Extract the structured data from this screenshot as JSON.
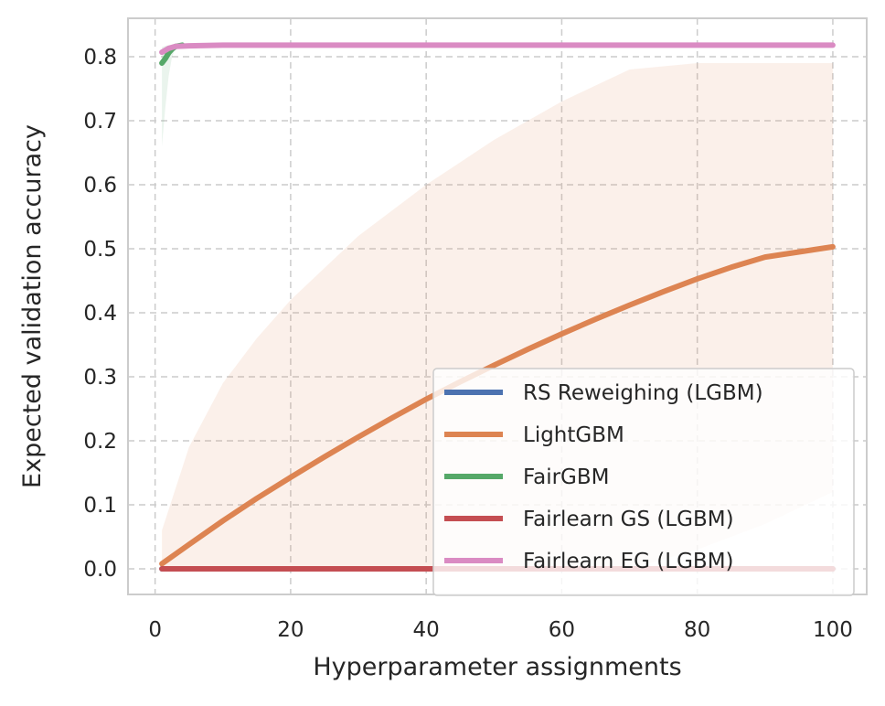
{
  "chart_data": {
    "type": "line",
    "title": "",
    "xlabel": "Hyperparameter assignments",
    "ylabel": "Expected validation accuracy",
    "xlim": [
      -4,
      105
    ],
    "ylim": [
      -0.04,
      0.86
    ],
    "xticks": [
      0,
      20,
      40,
      60,
      80,
      100
    ],
    "yticks": [
      0.0,
      0.1,
      0.2,
      0.3,
      0.4,
      0.5,
      0.6,
      0.7,
      0.8
    ],
    "xtick_labels": [
      "0",
      "20",
      "40",
      "60",
      "80",
      "100"
    ],
    "ytick_labels": [
      "0.0",
      "0.1",
      "0.2",
      "0.3",
      "0.4",
      "0.5",
      "0.6",
      "0.7",
      "0.8"
    ],
    "grid": true,
    "legend_position": "lower-right",
    "series": [
      {
        "name": "RS Reweighing (LGBM)",
        "color": "#4c72b0",
        "x": [
          1,
          100
        ],
        "y": [
          0.0,
          0.0
        ]
      },
      {
        "name": "LightGBM",
        "color": "#dd8452",
        "x": [
          1,
          5,
          10,
          15,
          20,
          25,
          30,
          35,
          40,
          45,
          50,
          55,
          60,
          65,
          70,
          75,
          80,
          85,
          90,
          95,
          100
        ],
        "y": [
          0.008,
          0.038,
          0.075,
          0.11,
          0.143,
          0.175,
          0.206,
          0.236,
          0.265,
          0.292,
          0.318,
          0.343,
          0.367,
          0.39,
          0.412,
          0.433,
          0.453,
          0.471,
          0.487,
          0.495,
          0.503
        ],
        "band": {
          "x": [
            1,
            5,
            10,
            15,
            20,
            30,
            40,
            50,
            60,
            70,
            80,
            90,
            100
          ],
          "upper": [
            0.06,
            0.19,
            0.29,
            0.36,
            0.42,
            0.52,
            0.6,
            0.67,
            0.73,
            0.78,
            0.79,
            0.79,
            0.79
          ],
          "lower": [
            0.0,
            0.0,
            0.0,
            0.0,
            0.0,
            0.0,
            0.0,
            0.0,
            0.0,
            0.0,
            0.03,
            0.07,
            0.12
          ]
        }
      },
      {
        "name": "FairGBM",
        "color": "#55a868",
        "x": [
          1,
          1.5,
          2,
          2.5,
          3,
          4
        ],
        "y": [
          0.79,
          0.797,
          0.806,
          0.812,
          0.816,
          0.818
        ],
        "band": {
          "x": [
            1,
            1.5,
            2,
            2.5,
            3,
            4
          ],
          "upper": [
            0.815,
            0.817,
            0.818,
            0.818,
            0.818,
            0.818
          ],
          "lower": [
            0.66,
            0.72,
            0.77,
            0.8,
            0.812,
            0.817
          ]
        }
      },
      {
        "name": "Fairlearn GS (LGBM)",
        "color": "#c44e52",
        "x": [
          1,
          100
        ],
        "y": [
          0.0,
          0.0
        ]
      },
      {
        "name": "Fairlearn EG (LGBM)",
        "color": "#da8bc3",
        "x": [
          1,
          2,
          3,
          5,
          10,
          20,
          40,
          60,
          80,
          100
        ],
        "y": [
          0.807,
          0.813,
          0.816,
          0.817,
          0.818,
          0.818,
          0.818,
          0.818,
          0.818,
          0.818
        ]
      }
    ]
  }
}
